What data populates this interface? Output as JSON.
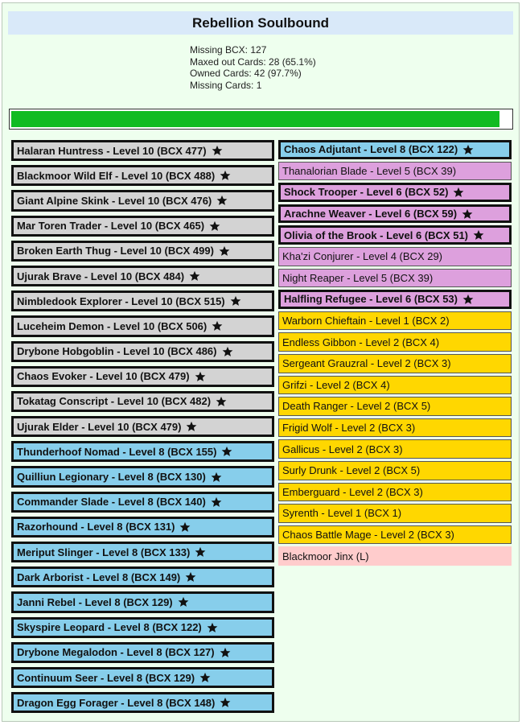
{
  "title": "Rebellion Soulbound",
  "stats": [
    "Missing BCX: 127",
    "Maxed out Cards: 28 (65.1%)",
    "Owned Cards: 42 (97.7%)",
    "Missing Cards: 1"
  ],
  "progress": {
    "fraction": 0.977
  },
  "colors": {
    "grey": "#d3d3d3",
    "blue": "#87ceeb",
    "purple": "#dda0dd",
    "gold": "#ffd700",
    "missing": "#ffcccc"
  },
  "cards_left": [
    {
      "label": "Halaran Huntress - Level 10 (BCX 477)",
      "color": "grey",
      "maxed": true
    },
    {
      "label": "Blackmoor Wild Elf - Level 10 (BCX 488)",
      "color": "grey",
      "maxed": true
    },
    {
      "label": "Giant Alpine Skink - Level 10 (BCX 476)",
      "color": "grey",
      "maxed": true
    },
    {
      "label": "Mar Toren Trader - Level 10 (BCX 465)",
      "color": "grey",
      "maxed": true
    },
    {
      "label": "Broken Earth Thug - Level 10 (BCX 499)",
      "color": "grey",
      "maxed": true
    },
    {
      "label": "Ujurak Brave - Level 10 (BCX 484)",
      "color": "grey",
      "maxed": true
    },
    {
      "label": "Nimbledook Explorer - Level 10 (BCX 515)",
      "color": "grey",
      "maxed": true
    },
    {
      "label": "Luceheim Demon - Level 10 (BCX 506)",
      "color": "grey",
      "maxed": true
    },
    {
      "label": "Drybone Hobgoblin - Level 10 (BCX 486)",
      "color": "grey",
      "maxed": true
    },
    {
      "label": "Chaos Evoker - Level 10 (BCX 479)",
      "color": "grey",
      "maxed": true
    },
    {
      "label": "Tokatag Conscript - Level 10 (BCX 482)",
      "color": "grey",
      "maxed": true
    },
    {
      "label": "Ujurak Elder - Level 10 (BCX 479)",
      "color": "grey",
      "maxed": true
    },
    {
      "label": "Thunderhoof Nomad - Level 8 (BCX 155)",
      "color": "blue",
      "maxed": true
    },
    {
      "label": "Quilliun Legionary - Level 8 (BCX 130)",
      "color": "blue",
      "maxed": true
    },
    {
      "label": "Commander Slade - Level 8 (BCX 140)",
      "color": "blue",
      "maxed": true
    },
    {
      "label": "Razorhound - Level 8 (BCX 131)",
      "color": "blue",
      "maxed": true
    },
    {
      "label": "Meriput Slinger - Level 8 (BCX 133)",
      "color": "blue",
      "maxed": true
    },
    {
      "label": "Dark Arborist - Level 8 (BCX 149)",
      "color": "blue",
      "maxed": true
    },
    {
      "label": "Janni Rebel - Level 8 (BCX 129)",
      "color": "blue",
      "maxed": true
    },
    {
      "label": "Skyspire Leopard - Level 8 (BCX 122)",
      "color": "blue",
      "maxed": true
    },
    {
      "label": "Drybone Megalodon - Level 8 (BCX 127)",
      "color": "blue",
      "maxed": true
    },
    {
      "label": "Continuum Seer - Level 8 (BCX 129)",
      "color": "blue",
      "maxed": true
    },
    {
      "label": "Dragon Egg Forager - Level 8 (BCX 148)",
      "color": "blue",
      "maxed": true
    }
  ],
  "cards_right": [
    {
      "label": "Chaos Adjutant - Level 8 (BCX 122)",
      "color": "blue",
      "maxed": true
    },
    {
      "label": "Thanalorian Blade - Level 5 (BCX 39)",
      "color": "purple",
      "maxed": false
    },
    {
      "label": "Shock Trooper - Level 6 (BCX 52)",
      "color": "purple",
      "maxed": true
    },
    {
      "label": "Arachne Weaver - Level 6 (BCX 59)",
      "color": "purple",
      "maxed": true
    },
    {
      "label": "Olivia of the Brook - Level 6 (BCX 51)",
      "color": "purple",
      "maxed": true
    },
    {
      "label": "Kha'zi Conjurer - Level 4 (BCX 29)",
      "color": "purple",
      "maxed": false
    },
    {
      "label": "Night Reaper - Level 5 (BCX 39)",
      "color": "purple",
      "maxed": false
    },
    {
      "label": "Halfling Refugee - Level 6 (BCX 53)",
      "color": "purple",
      "maxed": true
    },
    {
      "label": "Warborn Chieftain - Level 1 (BCX 2)",
      "color": "gold",
      "maxed": false
    },
    {
      "label": "Endless Gibbon - Level 2 (BCX 4)",
      "color": "gold",
      "maxed": false
    },
    {
      "label": "Sergeant Grauzral - Level 2 (BCX 3)",
      "color": "gold",
      "maxed": false
    },
    {
      "label": "Grifzi - Level 2 (BCX 4)",
      "color": "gold",
      "maxed": false
    },
    {
      "label": "Death Ranger - Level 2 (BCX 5)",
      "color": "gold",
      "maxed": false
    },
    {
      "label": "Frigid Wolf - Level 2 (BCX 3)",
      "color": "gold",
      "maxed": false
    },
    {
      "label": "Gallicus - Level 2 (BCX 3)",
      "color": "gold",
      "maxed": false
    },
    {
      "label": "Surly Drunk - Level 2 (BCX 5)",
      "color": "gold",
      "maxed": false
    },
    {
      "label": "Emberguard - Level 2 (BCX 3)",
      "color": "gold",
      "maxed": false
    },
    {
      "label": "Syrenth - Level 1 (BCX 1)",
      "color": "gold",
      "maxed": false
    },
    {
      "label": "Chaos Battle Mage - Level 2 (BCX 3)",
      "color": "gold",
      "maxed": false
    },
    {
      "label": "Blackmoor Jinx (L)",
      "color": "missing",
      "maxed": false,
      "missing": true
    }
  ],
  "icons": {
    "maxed": "star-icon"
  }
}
